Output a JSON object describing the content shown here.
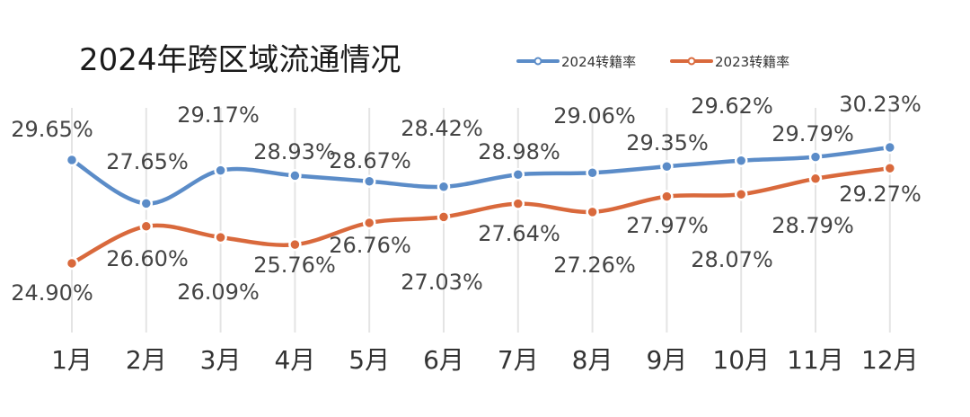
{
  "chart_data": {
    "type": "line",
    "title": "2024年跨区域流通情况",
    "categories": [
      "1月",
      "2月",
      "3月",
      "4月",
      "5月",
      "6月",
      "7月",
      "8月",
      "9月",
      "10月",
      "11月",
      "12月"
    ],
    "series": [
      {
        "name": "2024转籍率",
        "color": "#5b8cc8",
        "values": [
          29.65,
          27.65,
          29.17,
          28.93,
          28.67,
          28.42,
          28.98,
          29.06,
          29.35,
          29.62,
          29.79,
          30.23
        ],
        "labels": [
          "29.65%",
          "27.65%",
          "29.17%",
          "28.93%",
          "28.67%",
          "28.42%",
          "28.98%",
          "29.06%",
          "29.35%",
          "29.62%",
          "29.79%",
          "30.23%"
        ]
      },
      {
        "name": "2023转籍率",
        "color": "#d9693c",
        "values": [
          24.9,
          26.6,
          26.09,
          25.76,
          26.76,
          27.03,
          27.64,
          27.26,
          27.97,
          28.07,
          28.79,
          29.27
        ],
        "labels": [
          "24.90%",
          "26.60%",
          "26.09%",
          "25.76%",
          "26.76%",
          "27.03%",
          "27.64%",
          "27.26%",
          "27.97%",
          "28.07%",
          "28.79%",
          "29.27%"
        ]
      }
    ],
    "grid": "vertical",
    "legend": "top-right",
    "xlabel": "",
    "ylabel": ""
  }
}
